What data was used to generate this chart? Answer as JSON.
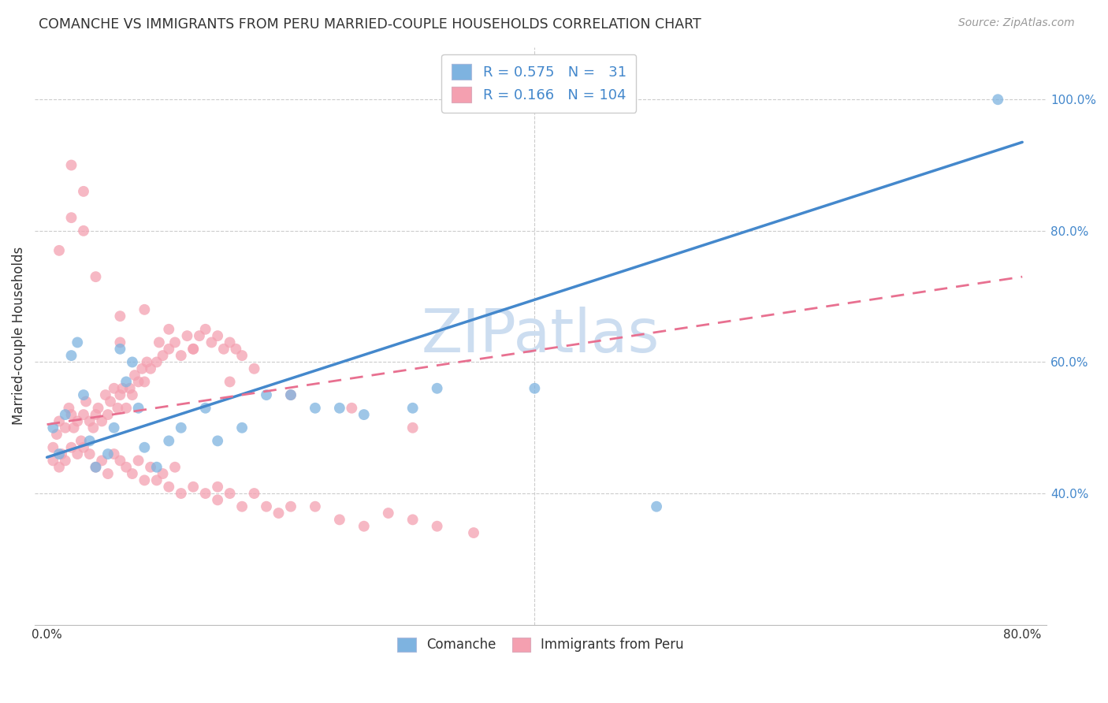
{
  "title": "COMANCHE VS IMMIGRANTS FROM PERU MARRIED-COUPLE HOUSEHOLDS CORRELATION CHART",
  "source": "Source: ZipAtlas.com",
  "ylabel": "Married-couple Households",
  "xlim": [
    -0.01,
    0.82
  ],
  "ylim": [
    0.2,
    1.08
  ],
  "xtick_vals": [
    0.0,
    0.1,
    0.2,
    0.3,
    0.4,
    0.5,
    0.6,
    0.7,
    0.8
  ],
  "xtick_labels": [
    "0.0%",
    "",
    "",
    "",
    "",
    "",
    "",
    "",
    "80.0%"
  ],
  "ytick_right_vals": [
    0.4,
    0.6,
    0.8,
    1.0
  ],
  "ytick_right_labels": [
    "40.0%",
    "60.0%",
    "80.0%",
    "100.0%"
  ],
  "legend_top_labels": [
    "R = 0.575   N =   31",
    "R = 0.166   N = 104"
  ],
  "legend_bottom_labels": [
    "Comanche",
    "Immigrants from Peru"
  ],
  "blue_color": "#7EB3E0",
  "pink_color": "#F4A0B0",
  "blue_line_color": "#4488CC",
  "pink_line_color": "#E87090",
  "axis_color": "#bbbbbb",
  "grid_color": "#cccccc",
  "text_color": "#333333",
  "right_axis_color": "#4488CC",
  "watermark_color": "#ccddf0",
  "watermark": "ZIPatlas",
  "comanche_R": 0.575,
  "comanche_N": 31,
  "peru_R": 0.166,
  "peru_N": 104,
  "blue_line_x0": 0.0,
  "blue_line_y0": 0.455,
  "blue_line_x1": 0.8,
  "blue_line_y1": 0.935,
  "pink_line_x0": 0.0,
  "pink_line_y0": 0.505,
  "pink_line_x1": 0.8,
  "pink_line_y1": 0.73,
  "blue_x": [
    0.005,
    0.01,
    0.015,
    0.02,
    0.025,
    0.03,
    0.035,
    0.04,
    0.05,
    0.055,
    0.06,
    0.065,
    0.07,
    0.075,
    0.08,
    0.09,
    0.1,
    0.11,
    0.13,
    0.14,
    0.16,
    0.18,
    0.2,
    0.22,
    0.24,
    0.26,
    0.3,
    0.32,
    0.4,
    0.5,
    0.78
  ],
  "blue_y": [
    0.5,
    0.46,
    0.52,
    0.61,
    0.63,
    0.55,
    0.48,
    0.44,
    0.46,
    0.5,
    0.62,
    0.57,
    0.6,
    0.53,
    0.47,
    0.44,
    0.48,
    0.5,
    0.53,
    0.48,
    0.5,
    0.55,
    0.55,
    0.53,
    0.53,
    0.52,
    0.53,
    0.56,
    0.56,
    0.38,
    1.0
  ],
  "pink_x": [
    0.005,
    0.008,
    0.01,
    0.012,
    0.015,
    0.018,
    0.02,
    0.022,
    0.025,
    0.028,
    0.03,
    0.032,
    0.035,
    0.038,
    0.04,
    0.042,
    0.045,
    0.048,
    0.05,
    0.052,
    0.055,
    0.058,
    0.06,
    0.062,
    0.065,
    0.068,
    0.07,
    0.072,
    0.075,
    0.078,
    0.08,
    0.082,
    0.085,
    0.09,
    0.092,
    0.095,
    0.1,
    0.105,
    0.11,
    0.115,
    0.12,
    0.125,
    0.13,
    0.135,
    0.14,
    0.145,
    0.15,
    0.155,
    0.16,
    0.17,
    0.005,
    0.01,
    0.015,
    0.02,
    0.025,
    0.03,
    0.035,
    0.04,
    0.045,
    0.05,
    0.055,
    0.06,
    0.065,
    0.07,
    0.075,
    0.08,
    0.085,
    0.09,
    0.095,
    0.1,
    0.105,
    0.11,
    0.12,
    0.13,
    0.14,
    0.15,
    0.16,
    0.17,
    0.18,
    0.19,
    0.2,
    0.22,
    0.24,
    0.26,
    0.28,
    0.3,
    0.32,
    0.35,
    0.01,
    0.02,
    0.03,
    0.04,
    0.06,
    0.08,
    0.1,
    0.12,
    0.15,
    0.2,
    0.25,
    0.3,
    0.02,
    0.03,
    0.06,
    0.14
  ],
  "pink_y": [
    0.47,
    0.49,
    0.51,
    0.46,
    0.5,
    0.53,
    0.52,
    0.5,
    0.51,
    0.48,
    0.52,
    0.54,
    0.51,
    0.5,
    0.52,
    0.53,
    0.51,
    0.55,
    0.52,
    0.54,
    0.56,
    0.53,
    0.55,
    0.56,
    0.53,
    0.56,
    0.55,
    0.58,
    0.57,
    0.59,
    0.57,
    0.6,
    0.59,
    0.6,
    0.63,
    0.61,
    0.62,
    0.63,
    0.61,
    0.64,
    0.62,
    0.64,
    0.65,
    0.63,
    0.64,
    0.62,
    0.63,
    0.62,
    0.61,
    0.59,
    0.45,
    0.44,
    0.45,
    0.47,
    0.46,
    0.47,
    0.46,
    0.44,
    0.45,
    0.43,
    0.46,
    0.45,
    0.44,
    0.43,
    0.45,
    0.42,
    0.44,
    0.42,
    0.43,
    0.41,
    0.44,
    0.4,
    0.41,
    0.4,
    0.39,
    0.4,
    0.38,
    0.4,
    0.38,
    0.37,
    0.38,
    0.38,
    0.36,
    0.35,
    0.37,
    0.36,
    0.35,
    0.34,
    0.77,
    0.82,
    0.8,
    0.73,
    0.67,
    0.68,
    0.65,
    0.62,
    0.57,
    0.55,
    0.53,
    0.5,
    0.9,
    0.86,
    0.63,
    0.41
  ]
}
